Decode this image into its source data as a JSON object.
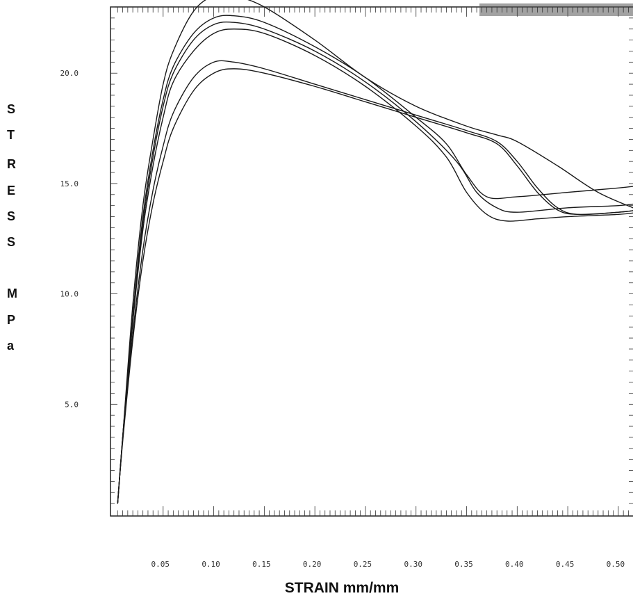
{
  "chart_data": {
    "type": "line",
    "title": "",
    "xlabel": "STRAIN mm/mm",
    "ylabel": "STRESS MPa",
    "ylabel_letters": [
      "S",
      "T",
      "R",
      "E",
      "S",
      "S",
      "",
      "M",
      "P",
      "a"
    ],
    "xlim": [
      0.0,
      0.52
    ],
    "ylim": [
      0.0,
      23.0
    ],
    "x_tick_labels": [
      "0.05",
      "0.10",
      "0.15",
      "0.20",
      "0.25",
      "0.30",
      "0.35",
      "0.40",
      "0.45",
      "0.50"
    ],
    "x_tick_values": [
      0.05,
      0.1,
      0.15,
      0.2,
      0.25,
      0.3,
      0.35,
      0.4,
      0.45,
      0.5
    ],
    "y_tick_labels": [
      "5.0",
      "10.0",
      "15.0",
      "20.0"
    ],
    "y_tick_values": [
      5,
      10,
      15,
      20
    ],
    "grid": false,
    "legend": "none",
    "line_color": "#1a1a1a",
    "series": [
      {
        "x": [
          0.005,
          0.01,
          0.02,
          0.03,
          0.04,
          0.05,
          0.06,
          0.08,
          0.1,
          0.12,
          0.15,
          0.2,
          0.25,
          0.3,
          0.35,
          0.38,
          0.4,
          0.44,
          0.48,
          0.52
        ],
        "y": [
          0.5,
          3.5,
          9.5,
          14.0,
          17.0,
          19.5,
          21.0,
          22.8,
          23.5,
          23.5,
          23.0,
          21.5,
          19.8,
          18.5,
          17.6,
          17.2,
          16.9,
          15.8,
          14.6,
          13.8
        ]
      },
      {
        "x": [
          0.005,
          0.01,
          0.02,
          0.03,
          0.04,
          0.05,
          0.06,
          0.08,
          0.1,
          0.12,
          0.15,
          0.2,
          0.25,
          0.3,
          0.33,
          0.35,
          0.37,
          0.4,
          0.45,
          0.5,
          0.52
        ],
        "y": [
          0.5,
          3.5,
          9.0,
          13.5,
          16.5,
          18.8,
          20.3,
          21.8,
          22.5,
          22.6,
          22.3,
          21.2,
          19.8,
          18.0,
          16.8,
          15.4,
          14.4,
          14.4,
          14.6,
          14.8,
          14.9
        ]
      },
      {
        "x": [
          0.005,
          0.01,
          0.02,
          0.03,
          0.04,
          0.05,
          0.06,
          0.08,
          0.1,
          0.12,
          0.15,
          0.2,
          0.25,
          0.3,
          0.34,
          0.36,
          0.38,
          0.4,
          0.45,
          0.5,
          0.52
        ],
        "y": [
          0.5,
          3.5,
          8.9,
          13.2,
          16.2,
          18.5,
          20.0,
          21.5,
          22.2,
          22.3,
          22.0,
          21.0,
          19.6,
          17.8,
          16.0,
          14.6,
          13.9,
          13.7,
          13.9,
          14.0,
          14.1
        ]
      },
      {
        "x": [
          0.005,
          0.01,
          0.02,
          0.03,
          0.04,
          0.05,
          0.06,
          0.08,
          0.1,
          0.12,
          0.15,
          0.2,
          0.25,
          0.3,
          0.33,
          0.35,
          0.37,
          0.39,
          0.42,
          0.45,
          0.5,
          0.52
        ],
        "y": [
          0.5,
          3.5,
          8.7,
          12.9,
          15.8,
          18.0,
          19.6,
          21.0,
          21.8,
          22.0,
          21.8,
          20.8,
          19.4,
          17.6,
          16.2,
          14.6,
          13.6,
          13.3,
          13.4,
          13.5,
          13.6,
          13.7
        ]
      },
      {
        "x": [
          0.005,
          0.01,
          0.02,
          0.03,
          0.04,
          0.05,
          0.06,
          0.08,
          0.1,
          0.12,
          0.15,
          0.2,
          0.25,
          0.3,
          0.35,
          0.38,
          0.4,
          0.42,
          0.44,
          0.46,
          0.5,
          0.52
        ],
        "y": [
          0.5,
          3.4,
          8.2,
          12.0,
          14.7,
          16.7,
          18.2,
          19.8,
          20.5,
          20.5,
          20.2,
          19.5,
          18.8,
          18.1,
          17.4,
          16.9,
          16.0,
          14.8,
          13.9,
          13.6,
          13.7,
          13.8
        ]
      },
      {
        "x": [
          0.005,
          0.01,
          0.02,
          0.03,
          0.04,
          0.05,
          0.06,
          0.08,
          0.1,
          0.12,
          0.15,
          0.2,
          0.25,
          0.3,
          0.35,
          0.38,
          0.4,
          0.42,
          0.44,
          0.46,
          0.5,
          0.52
        ],
        "y": [
          0.5,
          3.3,
          7.9,
          11.5,
          14.1,
          16.0,
          17.5,
          19.2,
          20.0,
          20.2,
          20.0,
          19.4,
          18.7,
          18.0,
          17.3,
          16.8,
          15.8,
          14.6,
          13.8,
          13.6,
          13.7,
          13.8
        ]
      }
    ]
  }
}
